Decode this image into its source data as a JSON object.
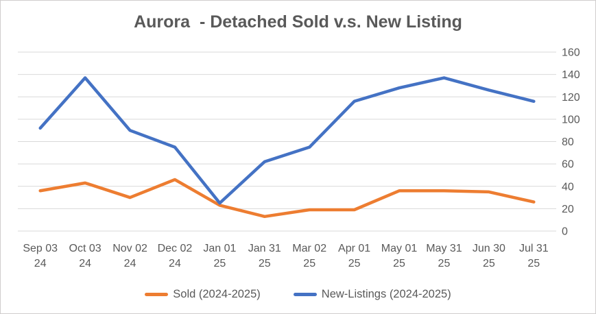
{
  "title": "Aurora  - Detached Sold v.s. New Listing",
  "chart_data": {
    "type": "line",
    "title": "Aurora - Detached Sold v.s. New Listing",
    "categories": [
      "Sep 03 24",
      "Oct 03 24",
      "Nov 02 24",
      "Dec 02 24",
      "Jan 01 25",
      "Jan 31 25",
      "Mar 02 25",
      "Apr 01 25",
      "May 01 25",
      "May 31 25",
      "Jun 30 25",
      "Jul 31 25"
    ],
    "series": [
      {
        "name": "Sold (2024-2025)",
        "color": "#ED7D31",
        "values": [
          36,
          43,
          30,
          46,
          23,
          13,
          19,
          19,
          36,
          36,
          35,
          26
        ]
      },
      {
        "name": "New-Listings (2024-2025)",
        "color": "#4472C4",
        "values": [
          92,
          137,
          90,
          75,
          25,
          62,
          75,
          116,
          128,
          137,
          126,
          116
        ]
      }
    ],
    "xlabel": "",
    "ylabel": "",
    "ylim": [
      0,
      160
    ],
    "ytick_step": 20,
    "yticks": [
      0,
      20,
      40,
      60,
      80,
      100,
      120,
      140,
      160
    ],
    "grid": true,
    "gridline_color": "#D9D9D9",
    "axis_label_color": "#595959",
    "y_axis_side": "right",
    "legend_position": "bottom"
  }
}
